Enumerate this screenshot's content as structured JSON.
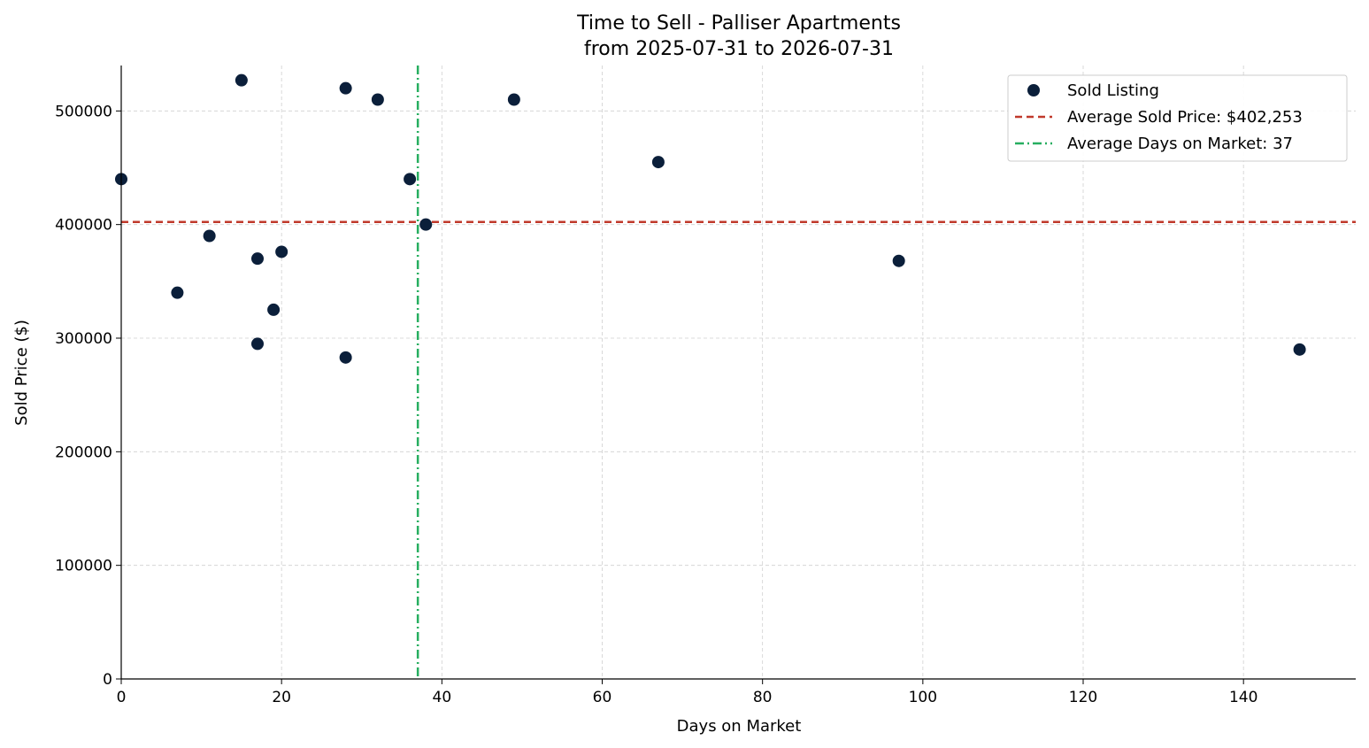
{
  "chart_data": {
    "type": "scatter",
    "title": "Time to Sell - Palliser Apartments",
    "subtitle": "from 2025-07-31 to 2026-07-31",
    "xlabel": "Days on Market",
    "ylabel": "Sold Price ($)",
    "xlim": [
      0,
      154
    ],
    "ylim": [
      0,
      540000
    ],
    "xticks": [
      0,
      20,
      40,
      60,
      80,
      100,
      120,
      140
    ],
    "yticks": [
      0,
      100000,
      200000,
      300000,
      400000,
      500000
    ],
    "grid": true,
    "legend_position": "top-right",
    "series": [
      {
        "name": "Sold Listing",
        "color": "#0b1f3a",
        "points": [
          {
            "x": 0,
            "y": 440000
          },
          {
            "x": 7,
            "y": 340000
          },
          {
            "x": 11,
            "y": 390000
          },
          {
            "x": 15,
            "y": 527000
          },
          {
            "x": 17,
            "y": 370000
          },
          {
            "x": 17,
            "y": 295000
          },
          {
            "x": 19,
            "y": 325000
          },
          {
            "x": 20,
            "y": 376000
          },
          {
            "x": 28,
            "y": 520000
          },
          {
            "x": 28,
            "y": 283000
          },
          {
            "x": 32,
            "y": 510000
          },
          {
            "x": 36,
            "y": 440000
          },
          {
            "x": 38,
            "y": 400000
          },
          {
            "x": 49,
            "y": 510000
          },
          {
            "x": 67,
            "y": 455000
          },
          {
            "x": 97,
            "y": 368000
          },
          {
            "x": 147,
            "y": 290000
          }
        ]
      }
    ],
    "reference_lines": [
      {
        "orientation": "horizontal",
        "value": 402253,
        "label": "Average Sold Price: $402,253",
        "color": "#c0392b",
        "style": "dashed"
      },
      {
        "orientation": "vertical",
        "value": 37,
        "label": "Average Days on Market: 37",
        "color": "#27ae60",
        "style": "dashdot"
      }
    ]
  }
}
